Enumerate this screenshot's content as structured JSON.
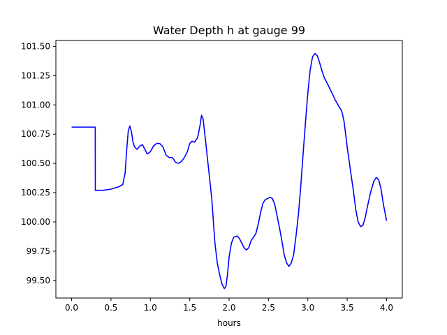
{
  "chart_data": {
    "type": "line",
    "title": "Water Depth h at gauge 99",
    "xlabel": "hours",
    "ylabel": "",
    "xlim": [
      -0.2,
      4.2
    ],
    "ylim": [
      99.35,
      101.55
    ],
    "xticks": [
      0.0,
      0.5,
      1.0,
      1.5,
      2.0,
      2.5,
      3.0,
      3.5,
      4.0
    ],
    "xtick_labels": [
      "0.0",
      "0.5",
      "1.0",
      "1.5",
      "2.0",
      "2.5",
      "3.0",
      "3.5",
      "4.0"
    ],
    "yticks": [
      99.5,
      99.75,
      100.0,
      100.25,
      100.5,
      100.75,
      101.0,
      101.25,
      101.5
    ],
    "ytick_labels": [
      "99.50",
      "99.75",
      "100.00",
      "100.25",
      "100.50",
      "100.75",
      "101.00",
      "101.25",
      "101.50"
    ],
    "grid": false,
    "series": [
      {
        "color": "#0000ff",
        "x": [
          0.0,
          0.3,
          0.301,
          0.34,
          0.4,
          0.5,
          0.6,
          0.65,
          0.68,
          0.7,
          0.72,
          0.74,
          0.76,
          0.78,
          0.8,
          0.83,
          0.87,
          0.9,
          0.93,
          0.96,
          1.0,
          1.04,
          1.08,
          1.12,
          1.16,
          1.2,
          1.24,
          1.28,
          1.32,
          1.36,
          1.4,
          1.44,
          1.47,
          1.5,
          1.53,
          1.56,
          1.6,
          1.63,
          1.65,
          1.67,
          1.7,
          1.74,
          1.78,
          1.82,
          1.85,
          1.88,
          1.91,
          1.94,
          1.96,
          1.98,
          2.0,
          2.03,
          2.06,
          2.1,
          2.13,
          2.16,
          2.19,
          2.22,
          2.25,
          2.28,
          2.31,
          2.34,
          2.37,
          2.4,
          2.43,
          2.46,
          2.49,
          2.52,
          2.55,
          2.58,
          2.61,
          2.64,
          2.67,
          2.7,
          2.73,
          2.76,
          2.79,
          2.82,
          2.85,
          2.88,
          2.91,
          2.94,
          2.97,
          3.0,
          3.03,
          3.06,
          3.09,
          3.12,
          3.15,
          3.18,
          3.21,
          3.25,
          3.3,
          3.35,
          3.4,
          3.43,
          3.46,
          3.5,
          3.55,
          3.58,
          3.61,
          3.64,
          3.67,
          3.7,
          3.73,
          3.76,
          3.8,
          3.84,
          3.87,
          3.9,
          3.93,
          3.96,
          4.0
        ],
        "y": [
          100.81,
          100.81,
          100.27,
          100.27,
          100.27,
          100.28,
          100.3,
          100.32,
          100.42,
          100.62,
          100.78,
          100.82,
          100.77,
          100.68,
          100.64,
          100.62,
          100.65,
          100.66,
          100.62,
          100.58,
          100.6,
          100.65,
          100.67,
          100.67,
          100.64,
          100.57,
          100.55,
          100.55,
          100.51,
          100.5,
          100.52,
          100.56,
          100.6,
          100.67,
          100.69,
          100.68,
          100.72,
          100.82,
          100.91,
          100.88,
          100.7,
          100.45,
          100.2,
          99.82,
          99.65,
          99.55,
          99.47,
          99.43,
          99.45,
          99.55,
          99.7,
          99.82,
          99.87,
          99.88,
          99.86,
          99.82,
          99.78,
          99.76,
          99.78,
          99.84,
          99.87,
          99.9,
          99.98,
          100.08,
          100.16,
          100.19,
          100.2,
          100.21,
          100.2,
          100.15,
          100.05,
          99.95,
          99.84,
          99.72,
          99.65,
          99.62,
          99.65,
          99.72,
          99.88,
          100.06,
          100.3,
          100.58,
          100.85,
          101.1,
          101.3,
          101.41,
          101.44,
          101.42,
          101.36,
          101.29,
          101.23,
          101.18,
          101.11,
          101.04,
          100.98,
          100.95,
          100.86,
          100.64,
          100.4,
          100.26,
          100.1,
          100.0,
          99.96,
          99.97,
          100.04,
          100.14,
          100.26,
          100.35,
          100.38,
          100.36,
          100.28,
          100.15,
          100.01
        ]
      }
    ]
  }
}
